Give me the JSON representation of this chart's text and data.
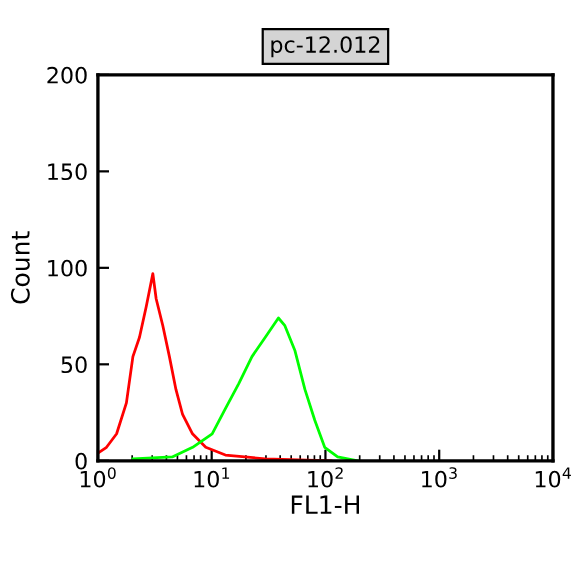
{
  "chart_data": {
    "type": "line",
    "title": "pc-12.012",
    "xlabel": "FL1-H",
    "ylabel": "Count",
    "log": "x",
    "xlim": [
      1,
      10000
    ],
    "ylim": [
      0,
      200
    ],
    "xticks": [
      {
        "value": 1,
        "label": "10$^{0}$"
      },
      {
        "value": 10,
        "label": "10$^{1}$"
      },
      {
        "value": 100,
        "label": "10$^{2}$"
      },
      {
        "value": 1000,
        "label": "10$^{3}$"
      },
      {
        "value": 10000,
        "label": "10$^{4}$"
      }
    ],
    "yticks": [
      0,
      50,
      100,
      150,
      200
    ],
    "grid": false,
    "legend": false,
    "series": [
      {
        "color": "#ff0000",
        "x": [
          1,
          1.19,
          1.46,
          1.78,
          2.03,
          2.32,
          2.66,
          3.04,
          3.25,
          3.72,
          4.25,
          4.85,
          5.55,
          6.78,
          8.87,
          13.2,
          29.6,
          112
        ],
        "values": [
          4,
          7,
          14,
          30,
          54,
          64,
          80,
          97,
          84,
          70,
          54,
          37,
          24,
          14,
          7,
          3,
          1,
          0
        ]
      },
      {
        "color": "#00ff00",
        "x": [
          2.03,
          4.5,
          6.8,
          10.1,
          13.2,
          17.3,
          22.6,
          29.6,
          38.6,
          44,
          54,
          66,
          80.6,
          98.5,
          128,
          192
        ],
        "values": [
          1,
          2,
          7,
          14,
          27,
          40,
          54,
          64,
          74,
          70,
          57,
          37,
          21,
          7,
          2,
          0
        ]
      }
    ]
  }
}
